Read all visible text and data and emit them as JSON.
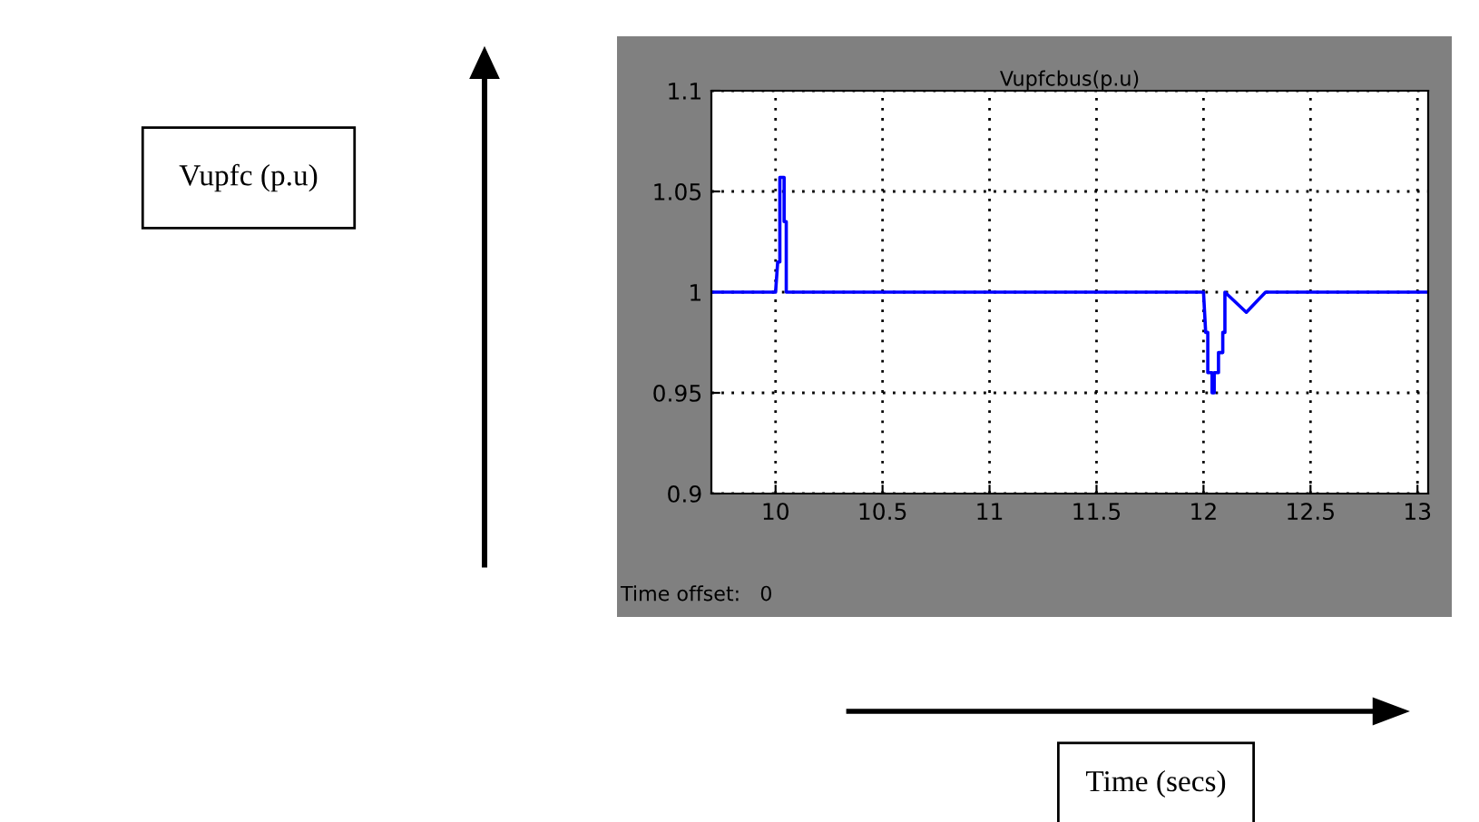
{
  "chart_data": {
    "type": "line",
    "title": "Vupfcbus(p.u)",
    "annotations": [
      "Time offset:   0",
      "Vupfc (p.u)",
      "Time (secs)"
    ],
    "series": [
      {
        "color": "#0000ff",
        "x": [
          9.7,
          10.0,
          10.01,
          10.02,
          10.02,
          10.04,
          10.04,
          10.05,
          10.05,
          12.0,
          12.01,
          12.02,
          12.02,
          12.04,
          12.04,
          12.05,
          12.05,
          12.07,
          12.07,
          12.09,
          12.09,
          12.1,
          12.1,
          12.2,
          12.29,
          13.05
        ],
        "values": [
          1.0,
          1.0,
          1.015,
          1.015,
          1.057,
          1.057,
          1.035,
          1.035,
          1.0,
          1.0,
          0.98,
          0.98,
          0.96,
          0.96,
          0.95,
          0.95,
          0.96,
          0.96,
          0.97,
          0.97,
          0.98,
          0.98,
          1.0,
          0.99,
          1.0,
          1.0
        ]
      }
    ],
    "xlim": [
      9.7,
      13.05
    ],
    "ylim": [
      0.9,
      1.1
    ],
    "xticks": [
      10,
      10.5,
      11,
      11.5,
      12,
      12.5,
      13
    ],
    "yticks": [
      0.9,
      0.95,
      1,
      1.05,
      1.1
    ],
    "grid": true,
    "line_style": "solid"
  }
}
